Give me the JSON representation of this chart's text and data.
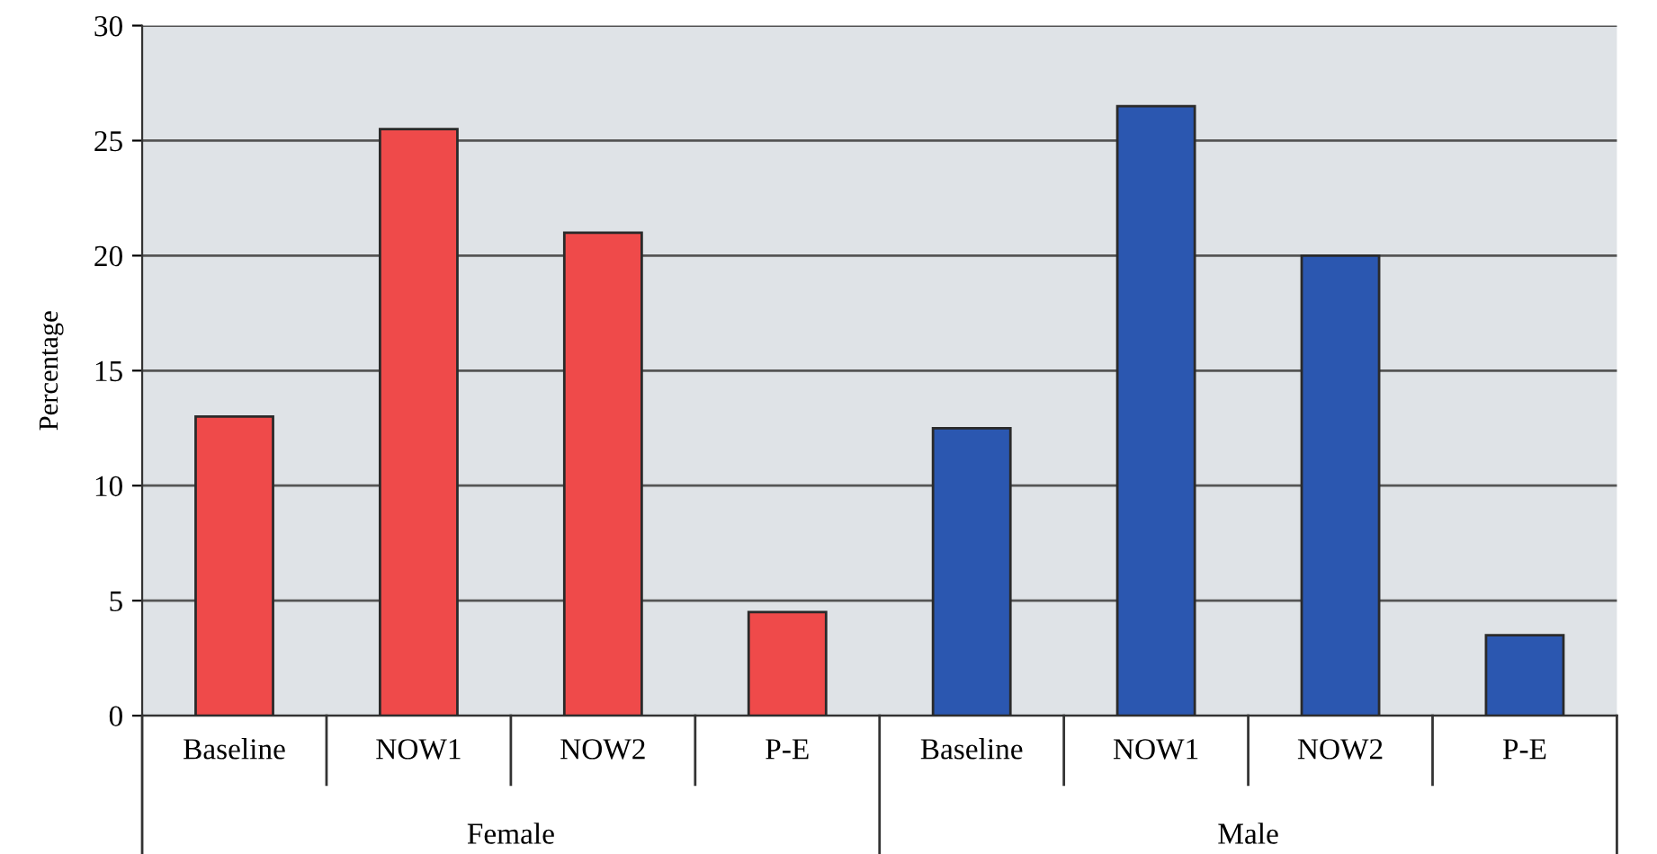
{
  "chart_data": {
    "type": "bar",
    "ylabel": "Percentage",
    "categories": [
      "Baseline",
      "NOW1",
      "NOW2",
      "P-E",
      "Baseline",
      "NOW1",
      "NOW2",
      "P-E"
    ],
    "values": [
      13,
      25.5,
      21,
      4.5,
      12.5,
      26.5,
      20,
      3.5
    ],
    "colors": [
      "#ef4a4a",
      "#ef4a4a",
      "#ef4a4a",
      "#ef4a4a",
      "#2b57b0",
      "#2b57b0",
      "#2b57b0",
      "#2b57b0"
    ],
    "annotations": [
      "Female",
      "Male"
    ],
    "ylim": [
      0,
      30
    ],
    "yticks": [
      0,
      5,
      10,
      15,
      20,
      25,
      30
    ],
    "grid": "y",
    "legend": false
  }
}
